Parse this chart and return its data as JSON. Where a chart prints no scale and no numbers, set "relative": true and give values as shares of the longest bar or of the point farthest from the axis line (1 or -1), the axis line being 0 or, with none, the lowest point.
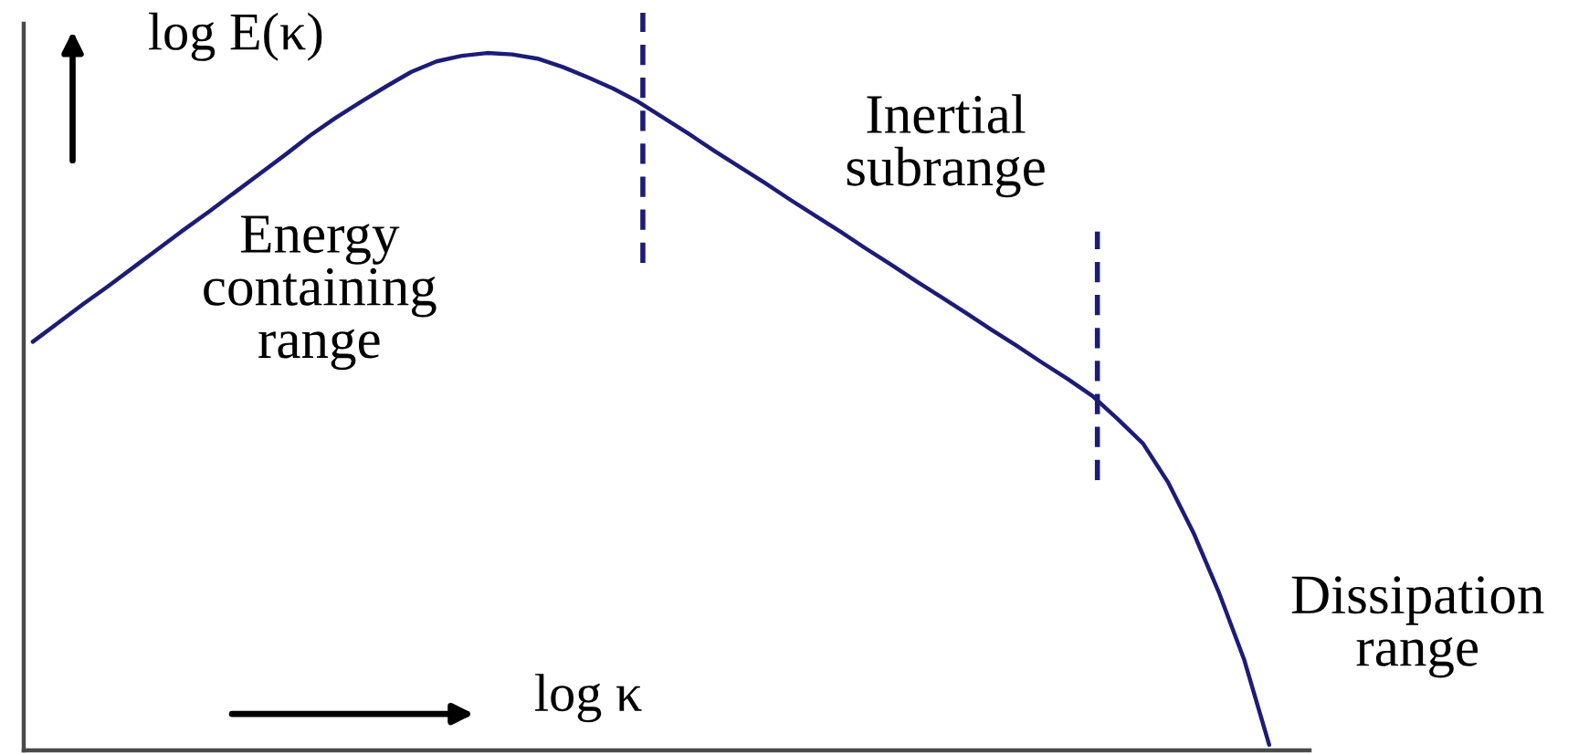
{
  "chart_data": {
    "type": "line",
    "relative": true,
    "xlabel": "log κ",
    "ylabel": "log E(κ)",
    "tick_labels": false,
    "categories": [
      null,
      null,
      null,
      null,
      null,
      null,
      null,
      null,
      null,
      null,
      null,
      null,
      null,
      null,
      null,
      null,
      null,
      null,
      null,
      null,
      null,
      null,
      null,
      null,
      null,
      null,
      null,
      null,
      null,
      null,
      null,
      null,
      null,
      null,
      null,
      null,
      null,
      null,
      null,
      null,
      null,
      null,
      null,
      null,
      null,
      null,
      null,
      null,
      null,
      null
    ],
    "series": [
      {
        "color": "#1c1c78",
        "values": [
          0.586,
          0.613,
          0.64,
          0.666,
          0.693,
          0.72,
          0.747,
          0.773,
          0.8,
          0.827,
          0.854,
          0.882,
          0.907,
          0.93,
          0.952,
          0.973,
          0.988,
          0.996,
          1.0,
          0.998,
          0.992,
          0.98,
          0.965,
          0.949,
          0.93,
          0.907,
          0.884,
          0.86,
          0.837,
          0.814,
          0.79,
          0.767,
          0.744,
          0.72,
          0.697,
          0.673,
          0.65,
          0.627,
          0.603,
          0.58,
          0.556,
          0.533,
          0.508,
          0.475,
          0.44,
          0.384,
          0.312,
          0.227,
          0.131,
          0.008
        ]
      }
    ],
    "annotations": [
      "Energy\ncontaining\nrange",
      "Inertial\nsubrange",
      "Dissipation\nrange"
    ]
  }
}
